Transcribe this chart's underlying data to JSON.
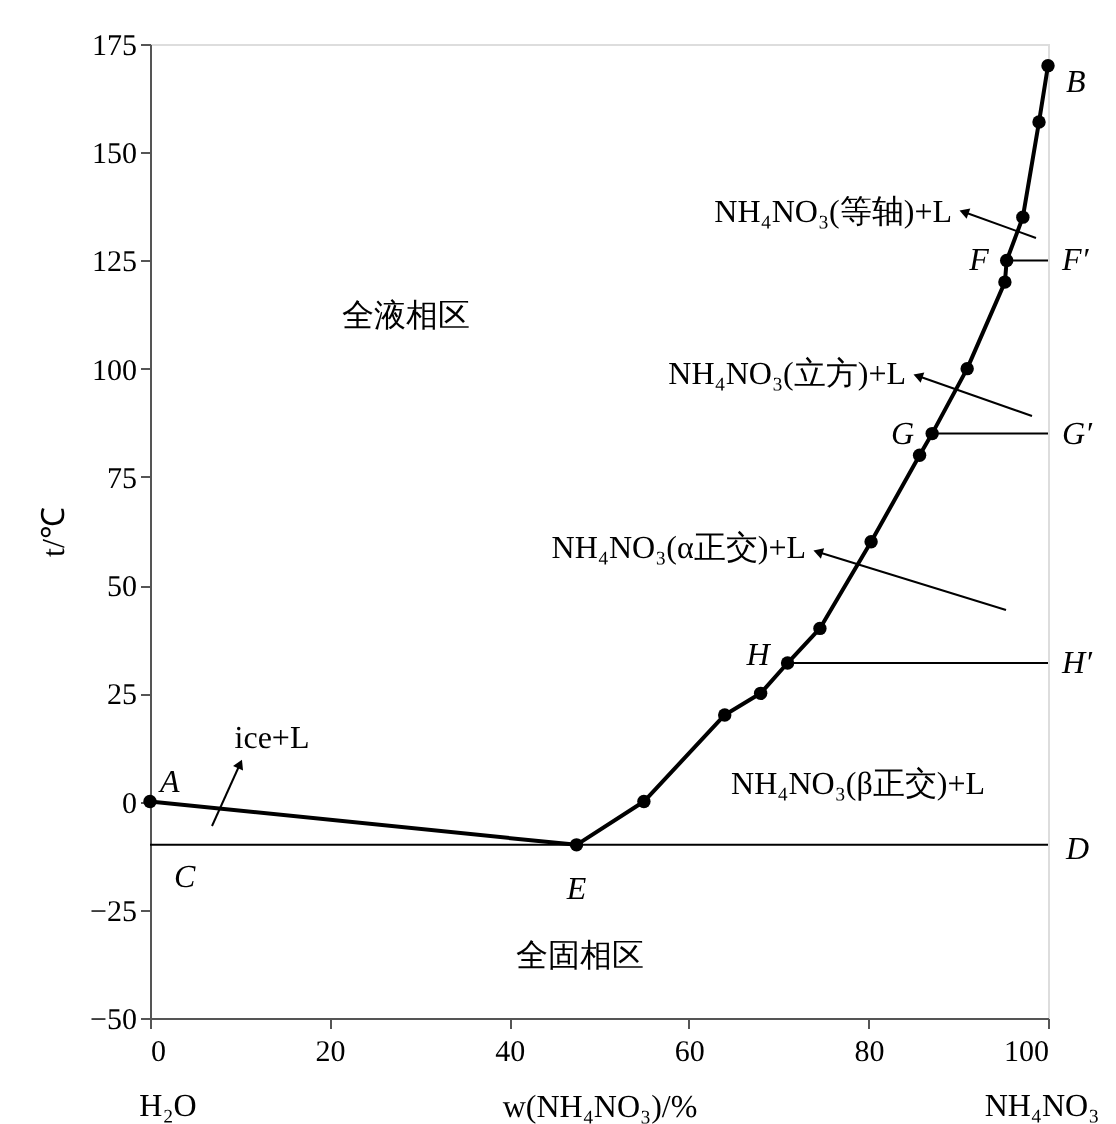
{
  "chart_data": {
    "type": "line",
    "xlabel": "w(NH₄NO₃)/%",
    "ylabel": "t/℃",
    "xlim": [
      0,
      100
    ],
    "xticks": [
      0,
      20,
      40,
      60,
      80,
      100
    ],
    "ylim": [
      -50,
      175
    ],
    "yticks": [
      -50,
      -25,
      0,
      25,
      50,
      75,
      100,
      125,
      150,
      175
    ],
    "series": [
      {
        "color": "#000000",
        "marker": "circle",
        "x": [
          0,
          47.5,
          55,
          64,
          68,
          71,
          74.6,
          80.3,
          85.7,
          87.1,
          91,
          95.2,
          95.4,
          97.2,
          99,
          100
        ],
        "values": [
          0,
          -10,
          0,
          20,
          25,
          32,
          40,
          60,
          80,
          85,
          100,
          120,
          125,
          135,
          157,
          170
        ]
      },
      {
        "color": "#000000",
        "marker": "none",
        "x": [
          95.4,
          100
        ],
        "values": [
          125,
          125
        ]
      },
      {
        "color": "#000000",
        "marker": "none",
        "x": [
          87.1,
          100
        ],
        "values": [
          85,
          85
        ]
      },
      {
        "color": "#000000",
        "marker": "none",
        "x": [
          71,
          100
        ],
        "values": [
          32,
          32
        ]
      }
    ],
    "ref_lines": [
      {
        "axis": "y",
        "value": -10,
        "color": "#000000"
      }
    ],
    "annotations": [
      {
        "text": "A",
        "x": 0,
        "y": 0
      },
      {
        "text": "B",
        "x": 100,
        "y": 170
      },
      {
        "text": "C",
        "x": 0,
        "y": -10
      },
      {
        "text": "D",
        "x": 100,
        "y": -10
      },
      {
        "text": "E",
        "x": 47.5,
        "y": -10
      },
      {
        "text": "F",
        "x": 95.4,
        "y": 125
      },
      {
        "text": "F′",
        "x": 100,
        "y": 125
      },
      {
        "text": "G",
        "x": 87.1,
        "y": 85
      },
      {
        "text": "G′",
        "x": 100,
        "y": 85
      },
      {
        "text": "H",
        "x": 71,
        "y": 32
      },
      {
        "text": "H′",
        "x": 100,
        "y": 32
      },
      "全液相区",
      "全固相区",
      "NH₄NO₃(β正交)+L",
      "ice+L",
      "NH₄NO₃(等轴)+L",
      "NH₄NO₃(立方)+L",
      "NH₄NO₃(α正交)+L",
      "H₂O",
      "NH₄NO₃"
    ]
  }
}
